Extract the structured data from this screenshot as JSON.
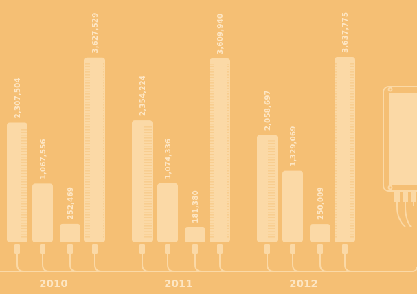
{
  "chart_data": {
    "type": "bar",
    "categories": [
      "2010",
      "2011",
      "2012"
    ],
    "series": [
      {
        "color": "#fbd9a6",
        "values": [
          2307504,
          2354224,
          2058697
        ],
        "value_labels": [
          "2,307,504",
          "2,354,224",
          "2,058,697"
        ]
      },
      {
        "color": "#fbd9a6",
        "values": [
          1067556,
          1074336,
          1329069
        ],
        "value_labels": [
          "1,067,556",
          "1,074,336",
          "1,329,069"
        ]
      },
      {
        "color": "#fbd9a6",
        "values": [
          252469,
          181380,
          250009
        ],
        "value_labels": [
          "252,469",
          "181,380",
          "250,009"
        ]
      },
      {
        "color": "#fbd9a6",
        "values": [
          3627529,
          3609940,
          3637775
        ],
        "value_labels": [
          "3,627,529",
          "3,609,940",
          "3,637,775"
        ]
      }
    ]
  }
}
